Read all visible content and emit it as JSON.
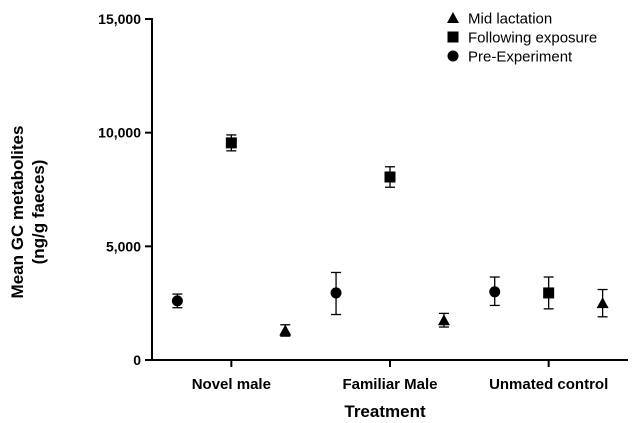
{
  "chart_data": {
    "type": "scatter",
    "title": "",
    "xlabel": "Treatment",
    "ylabel_lines": [
      "Mean GC metabolites",
      "(ng/g faeces)"
    ],
    "ylim": [
      0,
      15000
    ],
    "yticks": [
      0,
      5000,
      10000,
      15000
    ],
    "ytick_labels": [
      "0",
      "5,000",
      "10,000",
      "15,000"
    ],
    "categories": [
      "Novel male",
      "Familiar Male",
      "Unmated control"
    ],
    "grid": false,
    "legend_position": "top-right",
    "series": [
      {
        "name": "Mid lactation",
        "marker": "triangle",
        "values": [
          1300,
          1750,
          2500
        ],
        "err_low": [
          1050,
          1450,
          1900
        ],
        "err_high": [
          1550,
          2050,
          3100
        ]
      },
      {
        "name": "Following exposure",
        "marker": "square",
        "values": [
          9550,
          8050,
          2950
        ],
        "err_low": [
          9200,
          7600,
          2250
        ],
        "err_high": [
          9900,
          8500,
          3650
        ]
      },
      {
        "name": "Pre-Experiment",
        "marker": "circle",
        "values": [
          2600,
          2950,
          3000
        ],
        "err_low": [
          2300,
          2000,
          2400
        ],
        "err_high": [
          2900,
          3850,
          3650
        ]
      }
    ]
  }
}
